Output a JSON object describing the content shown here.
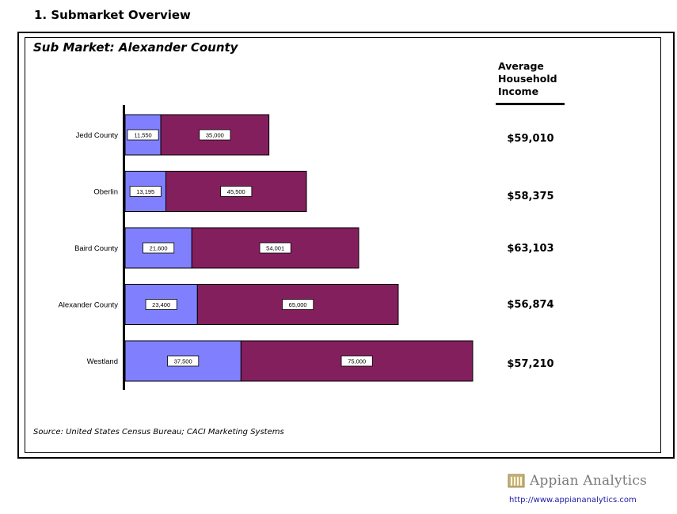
{
  "section_title": "1. Submarket Overview",
  "submarket_title": "Sub Market:  Alexander County",
  "income_header": [
    "Average",
    "Household",
    "Income"
  ],
  "source": "Source:  United States Census Bureau; CACI Marketing Systems",
  "logo_name": "Appian Analytics",
  "url": "http://www.appiananalytics.com",
  "colors": {
    "series1": "#8080ff",
    "series2": "#841f5e"
  },
  "chart_data": {
    "type": "bar",
    "orientation": "horizontal",
    "stacked": true,
    "categories": [
      "Jedd County",
      "Oberlin",
      "Baird County",
      "Alexander County",
      "Westland"
    ],
    "series": [
      {
        "values": [
          11550,
          13195,
          21600,
          23400,
          37500
        ],
        "labels": [
          "11,550",
          "13,195",
          "21,600",
          "23,400",
          "37,500"
        ]
      },
      {
        "values": [
          35000,
          45500,
          54001,
          65000,
          75000
        ],
        "labels": [
          "35,000",
          "45,500",
          "54,001",
          "65,000",
          "75,000"
        ]
      }
    ],
    "xlim": [
      0,
      112500
    ],
    "grid": false,
    "average_household_income": [
      "$59,010",
      "$58,375",
      "$63,103",
      "$56,874",
      "$57,210"
    ]
  }
}
